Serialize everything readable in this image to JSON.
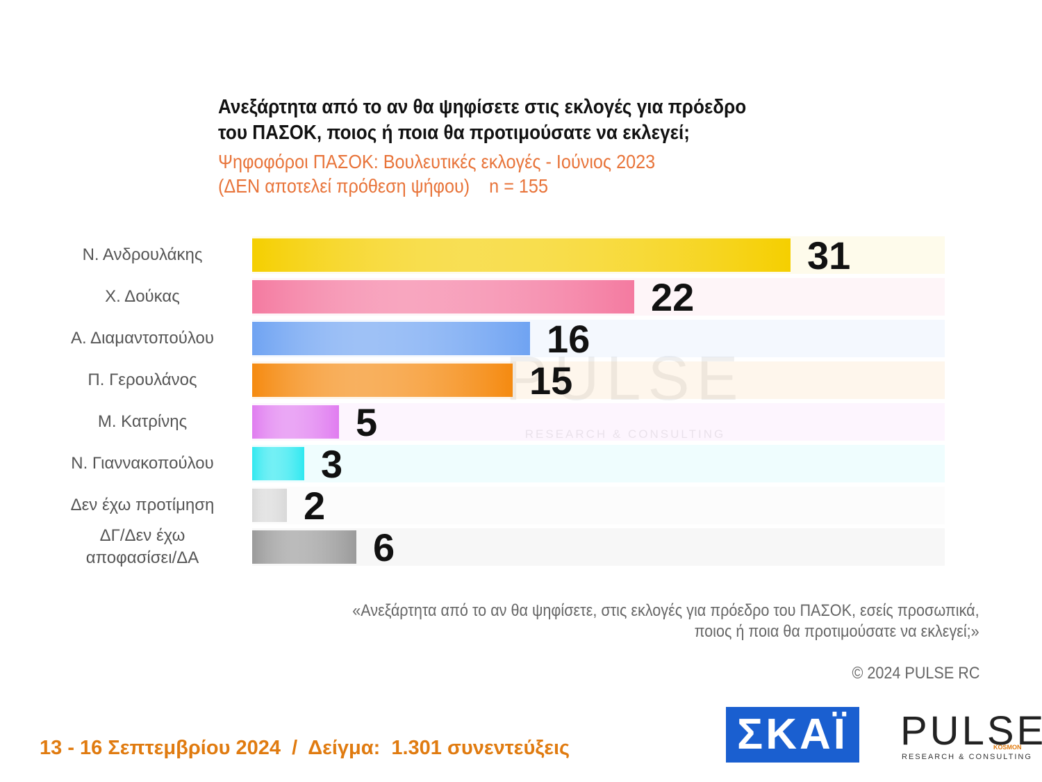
{
  "chart_data": {
    "type": "bar",
    "title": [
      "Ανεξάρτητα από το αν θα ψηφίσετε στις εκλογές για πρόεδρο",
      "του ΠΑΣΟΚ, ποιος ή ποια θα προτιμούσατε να εκλεγεί;"
    ],
    "subtitle": [
      "Ψηφοφόροι ΠΑΣΟΚ: Βουλευτικές εκλογές - Ιούνιος 2023",
      "(ΔΕΝ αποτελεί πρόθεση ψήφου)    n = 155"
    ],
    "categories": [
      "Ν. Ανδρουλάκης",
      "Χ. Δούκας",
      "Α. Διαμαντοπούλου",
      "Π. Γερουλάνος",
      "Μ. Κατρίνης",
      "Ν. Γιαννακοπούλου",
      "Δεν έχω προτίμηση",
      "ΔΓ/Δεν έχω αποφασίσει/ΔΑ"
    ],
    "values": [
      31,
      22,
      16,
      15,
      5,
      3,
      2,
      6
    ],
    "colors": [
      "#f5cf00",
      "#f47aa0",
      "#6fa3f2",
      "#f58a10",
      "#e07cf0",
      "#2ee8f0",
      "#d8d8d8",
      "#9a9a9a"
    ],
    "note": [
      "«Ανεξάρτητα από το αν θα ψηφίσετε, στις εκλογές για πρόεδρο του ΠΑΣΟΚ, εσείς προσωπικά,",
      "ποιος ή ποια θα προτιμούσατε να εκλεγεί;»"
    ],
    "copyright": "© 2024 PULSE RC",
    "watermark": [
      "PULSE",
      "RESEARCH & CONSULTING"
    ]
  },
  "footer": "13 - 16 Σεπτεμβρίου 2024  /  Δείγμα:  1.301 συνεντεύξεις",
  "logos": {
    "skai": "ΣΚΑΪ",
    "pulse": "PULSE",
    "pulse_sub": "RESEARCH & CONSULTING",
    "pulse_tag": "KOSMON"
  }
}
